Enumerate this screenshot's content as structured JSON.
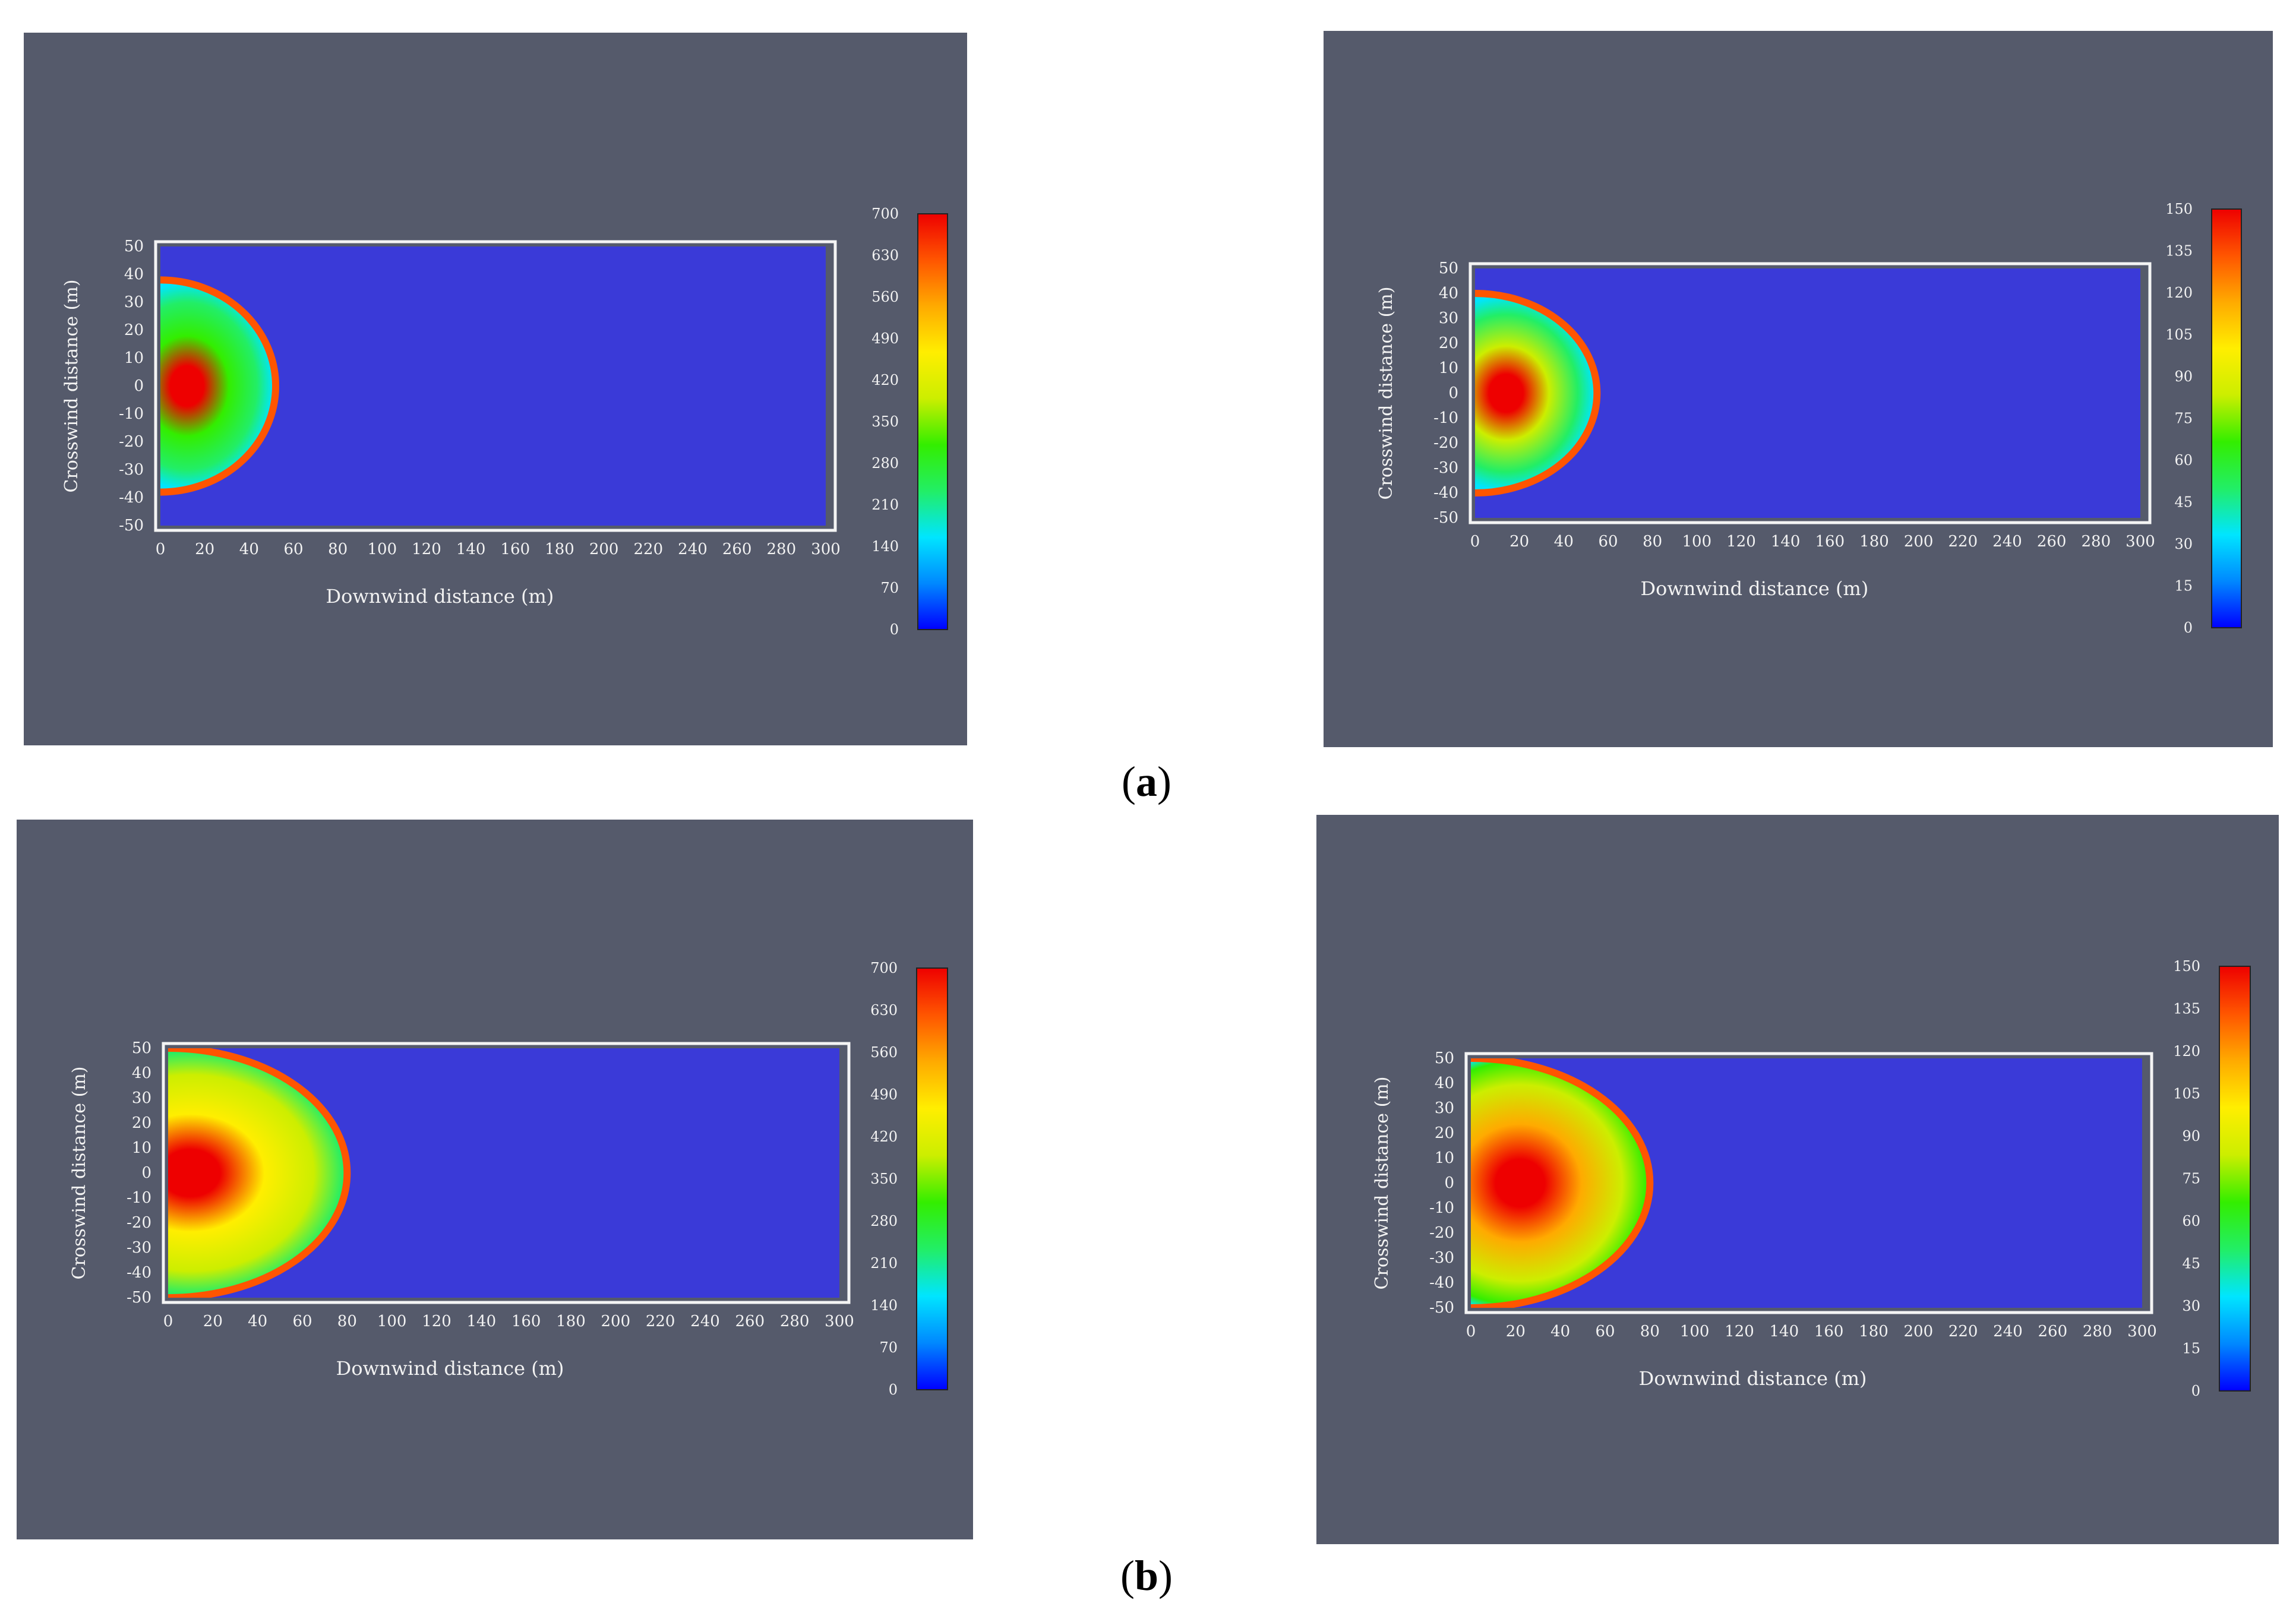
{
  "captions": {
    "a": "a",
    "b": "b"
  },
  "colormap": [
    "#0000ff",
    "#0088ff",
    "#00e5ff",
    "#22ee66",
    "#33ee00",
    "#ccee00",
    "#ffee00",
    "#ffaa00",
    "#ff5500",
    "#ee0000"
  ],
  "domain_color": "#3a3ad8",
  "background_color": "#555a6b",
  "chart_data": [
    {
      "type": "heatmap",
      "id": "a-left",
      "xlabel": "Downwind distance (m)",
      "ylabel": "Crosswind distance (m)",
      "xlim": [
        0,
        300
      ],
      "ylim": [
        -50,
        50
      ],
      "x_ticks": [
        0,
        20,
        40,
        60,
        80,
        100,
        120,
        140,
        160,
        180,
        200,
        220,
        240,
        260,
        280,
        300
      ],
      "y_ticks": [
        50,
        40,
        30,
        20,
        10,
        0,
        -10,
        -20,
        -30,
        -40,
        -50
      ],
      "colorbar_ticks": [
        700,
        630,
        560,
        490,
        420,
        350,
        280,
        210,
        140,
        70,
        0
      ],
      "colorbar_range": [
        0,
        700
      ],
      "plume": {
        "front_x": 52,
        "half_width": 38,
        "core_x": 12,
        "core_value": 700,
        "edge_value": 650,
        "inner_value": 320
      }
    },
    {
      "type": "heatmap",
      "id": "a-right",
      "xlabel": "Downwind distance (m)",
      "ylabel": "Crosswind distance (m)",
      "xlim": [
        0,
        300
      ],
      "ylim": [
        -50,
        50
      ],
      "x_ticks": [
        0,
        20,
        40,
        60,
        80,
        100,
        120,
        140,
        160,
        180,
        200,
        220,
        240,
        260,
        280,
        300
      ],
      "y_ticks": [
        50,
        40,
        30,
        20,
        10,
        0,
        -10,
        -20,
        -30,
        -40,
        -50
      ],
      "colorbar_ticks": [
        150,
        135,
        120,
        105,
        90,
        75,
        60,
        45,
        30,
        15,
        0
      ],
      "colorbar_range": [
        0,
        150
      ],
      "plume": {
        "front_x": 55,
        "half_width": 40,
        "core_x": 14,
        "core_value": 150,
        "edge_value": 140,
        "inner_value": 75
      }
    },
    {
      "type": "heatmap",
      "id": "b-left",
      "xlabel": "Downwind distance (m)",
      "ylabel": "Crosswind distance (m)",
      "xlim": [
        0,
        300
      ],
      "ylim": [
        -50,
        50
      ],
      "x_ticks": [
        0,
        20,
        40,
        60,
        80,
        100,
        120,
        140,
        160,
        180,
        200,
        220,
        240,
        260,
        280,
        300
      ],
      "y_ticks": [
        50,
        40,
        30,
        20,
        10,
        0,
        -10,
        -20,
        -30,
        -40,
        -50
      ],
      "colorbar_ticks": [
        700,
        630,
        560,
        490,
        420,
        350,
        280,
        210,
        140,
        70,
        0
      ],
      "colorbar_range": [
        0,
        700
      ],
      "plume": {
        "front_x": 80,
        "half_width": 50,
        "core_x": 10,
        "core_value": 700,
        "edge_value": 650,
        "inner_value": 480
      }
    },
    {
      "type": "heatmap",
      "id": "b-right",
      "xlabel": "Downwind distance (m)",
      "ylabel": "Crosswind distance (m)",
      "xlim": [
        0,
        300
      ],
      "ylim": [
        -50,
        50
      ],
      "x_ticks": [
        0,
        20,
        40,
        60,
        80,
        100,
        120,
        140,
        160,
        180,
        200,
        220,
        240,
        260,
        280,
        300
      ],
      "y_ticks": [
        50,
        40,
        30,
        20,
        10,
        0,
        -10,
        -20,
        -30,
        -40,
        -50
      ],
      "colorbar_ticks": [
        150,
        135,
        120,
        105,
        90,
        75,
        60,
        45,
        30,
        15,
        0
      ],
      "colorbar_range": [
        0,
        150
      ],
      "plume": {
        "front_x": 80,
        "half_width": 50,
        "core_x": 22,
        "core_value": 150,
        "edge_value": 140,
        "inner_value": 110
      }
    }
  ]
}
